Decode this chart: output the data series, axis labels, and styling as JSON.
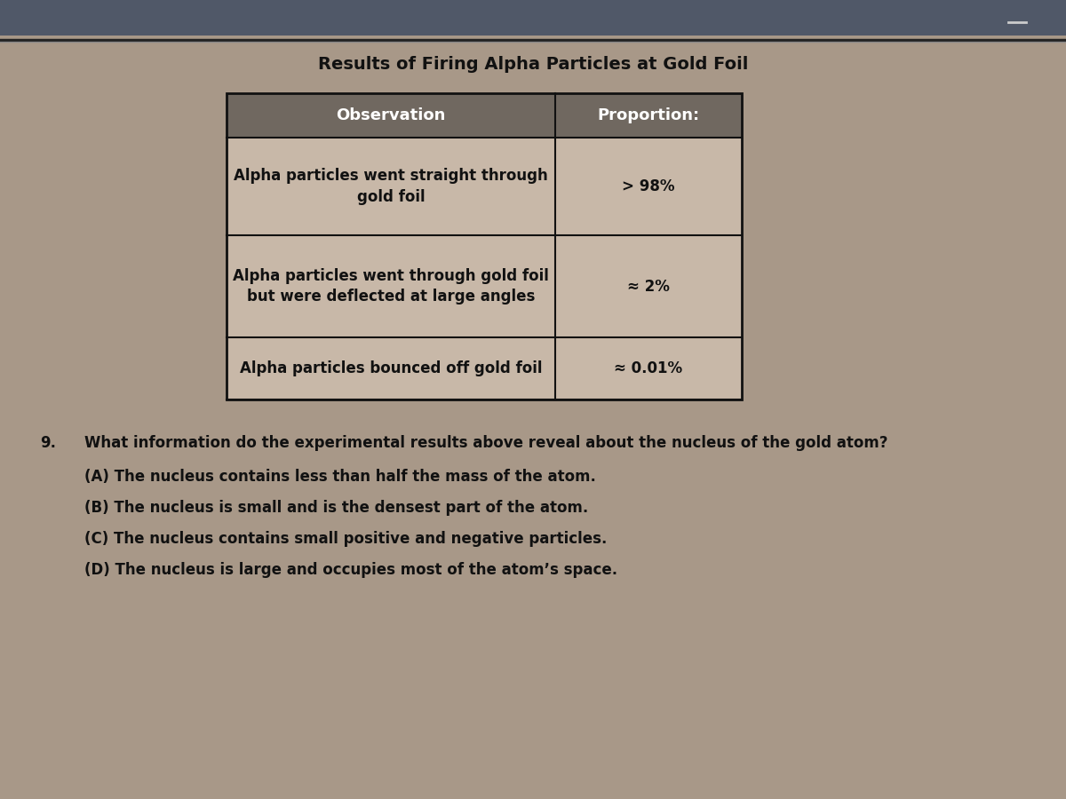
{
  "title": "Results of Firing Alpha Particles at Gold Foil",
  "table_headers": [
    "Observation",
    "Proportion:"
  ],
  "table_rows": [
    [
      "Alpha particles went straight through\ngold foil",
      "> 98%"
    ],
    [
      "Alpha particles went through gold foil\nbut were deflected at large angles",
      "≈ 2%"
    ],
    [
      "Alpha particles bounced off gold foil",
      "≈ 0.01%"
    ]
  ],
  "question_number": "9.",
  "question_text": "What information do the experimental results above reveal about the nucleus of the gold atom?",
  "options": [
    "(A) The nucleus contains less than half the mass of the atom.",
    "(B) The nucleus is small and is the densest part of the atom.",
    "(C) The nucleus contains small positive and negative particles.",
    "(D) The nucleus is large and occupies most of the atom’s space."
  ],
  "bg_color": "#a89888",
  "header_bg_color": "#706860",
  "cell_bg_color": "#c8b8a8",
  "border_color": "#111111",
  "title_fontsize": 14,
  "header_fontsize": 13,
  "cell_fontsize": 12,
  "question_fontsize": 12,
  "text_color": "#111111",
  "header_text_color": "#ffffff",
  "top_bar_color": "#505868",
  "top_bar2_color": "#404858"
}
